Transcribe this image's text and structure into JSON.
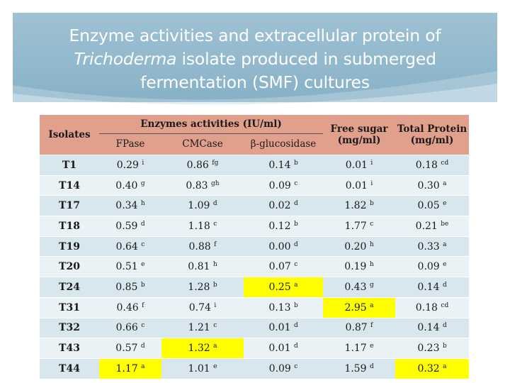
{
  "title": {
    "line1": "Enzyme activities and extracellular protein of",
    "line2_italic": "Trichoderma",
    "line2_rest": " isolate produced in submerged",
    "line3": "fermentation (SMF) cultures"
  },
  "colors": {
    "header": "#e0a08b",
    "highlight": "#ffff00",
    "title_band": "#9fc2d4"
  },
  "table": {
    "headers": {
      "isolates": "Isolates",
      "enzymes_group": "Enzymes activities (IU/ml)",
      "fpase": "FPase",
      "cmcase": "CMCase",
      "bglucosidase": "β-glucosidase",
      "free_sugar_1": "Free sugar",
      "free_sugar_2": "(mg/ml)",
      "total_protein_1": "Total Protein",
      "total_protein_2": "(mg/ml)"
    },
    "rows": [
      {
        "isolate": "T1",
        "fpase": "0.29",
        "fpase_sup": "i",
        "cmcase": "0.86",
        "cmcase_sup": "fg",
        "bg": "0.14",
        "bg_sup": "b",
        "sugar": "0.01",
        "sugar_sup": "i",
        "protein": "0.18",
        "protein_sup": "cd"
      },
      {
        "isolate": "T14",
        "fpase": "0.40",
        "fpase_sup": "g",
        "cmcase": "0.83",
        "cmcase_sup": "gh",
        "bg": "0.09",
        "bg_sup": "c",
        "sugar": "0.01",
        "sugar_sup": "i",
        "protein": "0.30",
        "protein_sup": "a"
      },
      {
        "isolate": "T17",
        "fpase": "0.34",
        "fpase_sup": "h",
        "cmcase": "1.09",
        "cmcase_sup": "d",
        "bg": "0.02",
        "bg_sup": "d",
        "sugar": "1.82",
        "sugar_sup": "b",
        "protein": "0.05",
        "protein_sup": "e"
      },
      {
        "isolate": "T18",
        "fpase": "0.59",
        "fpase_sup": "d",
        "cmcase": "1.18",
        "cmcase_sup": "c",
        "bg": "0.12",
        "bg_sup": "b",
        "sugar": "1.77",
        "sugar_sup": "c",
        "protein": "0.21",
        "protein_sup": "be"
      },
      {
        "isolate": "T19",
        "fpase": "0.64",
        "fpase_sup": "c",
        "cmcase": "0.88",
        "cmcase_sup": "f",
        "bg": "0.00",
        "bg_sup": "d",
        "sugar": "0.20",
        "sugar_sup": "h",
        "protein": "0.33",
        "protein_sup": "a"
      },
      {
        "isolate": "T20",
        "fpase": "0.51",
        "fpase_sup": "e",
        "cmcase": "0.81",
        "cmcase_sup": "h",
        "bg": "0.07",
        "bg_sup": "c",
        "sugar": "0.19",
        "sugar_sup": "h",
        "protein": "0.09",
        "protein_sup": "e"
      },
      {
        "isolate": "T24",
        "fpase": "0.85",
        "fpase_sup": "b",
        "cmcase": "1.28",
        "cmcase_sup": "b",
        "bg": "0.25",
        "bg_sup": "a",
        "sugar": "0.43",
        "sugar_sup": "g",
        "protein": "0.14",
        "protein_sup": "d"
      },
      {
        "isolate": "T31",
        "fpase": "0.46",
        "fpase_sup": "f",
        "cmcase": "0.74",
        "cmcase_sup": "i",
        "bg": "0.13",
        "bg_sup": "b",
        "sugar": "2.95",
        "sugar_sup": "a",
        "protein": "0.18",
        "protein_sup": "cd"
      },
      {
        "isolate": "T32",
        "fpase": "0.66",
        "fpase_sup": "c",
        "cmcase": "1.21",
        "cmcase_sup": "c",
        "bg": "0.01",
        "bg_sup": "d",
        "sugar": "0.87",
        "sugar_sup": "f",
        "protein": "0.14",
        "protein_sup": "d"
      },
      {
        "isolate": "T43",
        "fpase": "0.57",
        "fpase_sup": "d",
        "cmcase": "1.32",
        "cmcase_sup": "a",
        "bg": "0.01",
        "bg_sup": "d",
        "sugar": "1.17",
        "sugar_sup": "e",
        "protein": "0.23",
        "protein_sup": "b"
      },
      {
        "isolate": "T44",
        "fpase": "1.17",
        "fpase_sup": "a",
        "cmcase": "1.01",
        "cmcase_sup": "e",
        "bg": "0.09",
        "bg_sup": "c",
        "sugar": "1.59",
        "sugar_sup": "d",
        "protein": "0.32",
        "protein_sup": "a"
      }
    ],
    "highlighted_cells": [
      {
        "row": 6,
        "col": "bg"
      },
      {
        "row": 7,
        "col": "sugar"
      },
      {
        "row": 9,
        "col": "cmcase"
      },
      {
        "row": 10,
        "col": "fpase"
      },
      {
        "row": 10,
        "col": "protein"
      }
    ]
  }
}
